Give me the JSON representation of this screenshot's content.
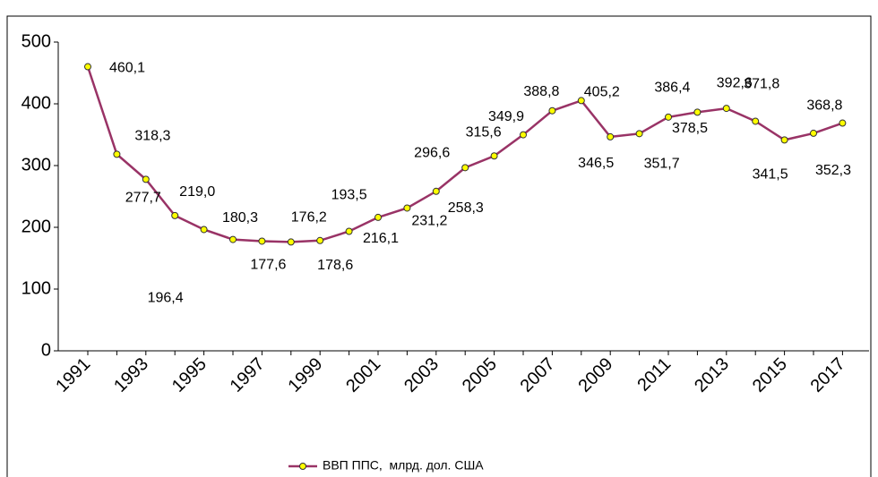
{
  "chart_data": {
    "type": "line",
    "categories": [
      "1991",
      null,
      "1993",
      null,
      "1995",
      null,
      "1997",
      null,
      "1999",
      null,
      "2001",
      null,
      "2003",
      null,
      "2005",
      null,
      "2007",
      null,
      "2009",
      null,
      "2011",
      null,
      "2013",
      null,
      "2015",
      null,
      "2017"
    ],
    "series": [
      {
        "name": "ВВП ППС,  млрд. дол. США",
        "color": "#993366",
        "values": [
          460.1,
          318.3,
          277.7,
          219.0,
          196.4,
          180.3,
          177.6,
          176.2,
          178.6,
          193.5,
          216.1,
          231.2,
          258.3,
          296.6,
          315.6,
          349.9,
          388.8,
          405.2,
          346.5,
          351.7,
          378.5,
          386.4,
          392.6,
          371.8,
          341.5,
          352.3,
          368.8
        ],
        "value_labels": [
          "460,1",
          "318,3",
          "277,7",
          "219,0",
          "196,4",
          "180,3",
          "177,6",
          "176,2",
          "178,6",
          "193,5",
          "216,1",
          "231,2",
          "258,3",
          "296,6",
          "315,6",
          "349,9",
          "388,8",
          "405,2",
          "346,5",
          "351,7",
          "378,5",
          "386,4",
          "392,6",
          "371,8",
          "341,5",
          "352,3",
          "368,8"
        ]
      }
    ],
    "ylim": [
      0,
      500
    ],
    "yticks": [
      0,
      100,
      200,
      300,
      400,
      500
    ],
    "legend": "bottom"
  }
}
